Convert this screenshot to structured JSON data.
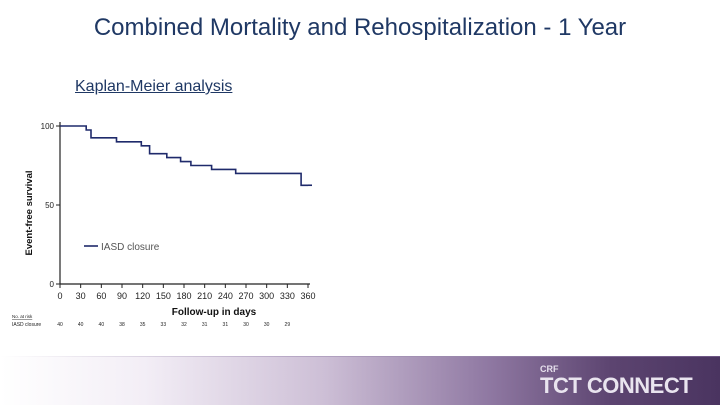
{
  "slide": {
    "title": "Combined Mortality and Rehospitalization - 1 Year",
    "subtitle": "Kaplan-Meier analysis"
  },
  "chart_data": {
    "type": "line",
    "title": "",
    "xlabel": "Follow-up in days",
    "ylabel": "Event-free survival",
    "xlim": [
      0,
      360
    ],
    "ylim": [
      0,
      100
    ],
    "x_ticks": [
      "0",
      "30",
      "60",
      "90",
      "120",
      "150",
      "180",
      "210",
      "240",
      "270",
      "300",
      "330",
      "360"
    ],
    "y_ticks": [
      "0",
      "50",
      "100"
    ],
    "grid": false,
    "legend_position": "lower-left",
    "series": [
      {
        "name": "IASD closure",
        "color": "#1f2a6b",
        "step": true,
        "points": [
          [
            0,
            100
          ],
          [
            38,
            100
          ],
          [
            38,
            97.5
          ],
          [
            45,
            97.5
          ],
          [
            45,
            92.5
          ],
          [
            82,
            92.5
          ],
          [
            82,
            90
          ],
          [
            118,
            90
          ],
          [
            118,
            87.5
          ],
          [
            130,
            87.5
          ],
          [
            130,
            82.5
          ],
          [
            155,
            82.5
          ],
          [
            155,
            80
          ],
          [
            175,
            80
          ],
          [
            175,
            77.5
          ],
          [
            190,
            77.5
          ],
          [
            190,
            75
          ],
          [
            220,
            75
          ],
          [
            220,
            72.5
          ],
          [
            255,
            72.5
          ],
          [
            255,
            70
          ],
          [
            350,
            70
          ],
          [
            350,
            62.5
          ],
          [
            360,
            62.5
          ]
        ]
      }
    ],
    "risk_table": {
      "header": "No. at risk",
      "rows": [
        {
          "label": "IASD closure",
          "values": [
            "40",
            "40",
            "40",
            "38",
            "35",
            "33",
            "32",
            "31",
            "31",
            "30",
            "30",
            "29"
          ]
        }
      ]
    }
  },
  "branding": {
    "org": "CRF",
    "event": "TCT CONNECT"
  }
}
